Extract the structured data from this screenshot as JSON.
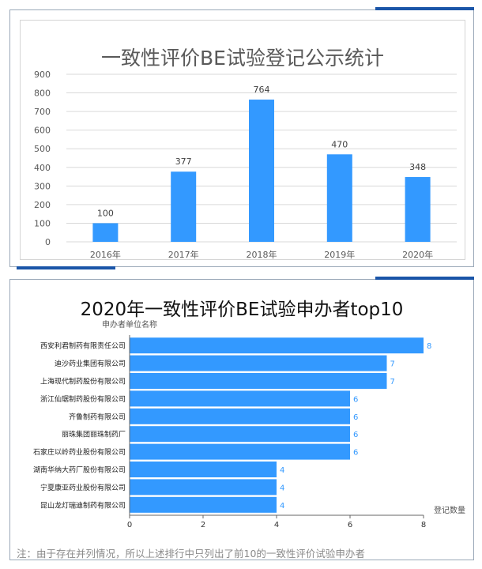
{
  "chart1": {
    "title": "一致性评价BE试验登记公示统计",
    "chart_data": {
      "type": "bar",
      "title": "一致性评价BE试验登记公示统计",
      "categories": [
        "2016年",
        "2017年",
        "2018年",
        "2019年",
        "2020年"
      ],
      "values": [
        100,
        377,
        764,
        470,
        348
      ],
      "ylim": [
        0,
        900
      ],
      "yticks": [
        0,
        100,
        200,
        300,
        400,
        500,
        600,
        700,
        800,
        900
      ],
      "grid": true,
      "bar_color": "#3399ff"
    }
  },
  "chart2": {
    "title": "2020年一致性评价BE试验申办者top10",
    "y_axis_title": "申办者单位名称",
    "x_axis_title": "登记数量",
    "note": "注：由于存在并列情况，所以上述排行中只列出了前10的一致性评价试验申办者",
    "chart_data": {
      "type": "bar",
      "orientation": "horizontal",
      "title": "2020年一致性评价BE试验申办者top10",
      "xlabel": "登记数量",
      "ylabel": "申办者单位名称",
      "categories": [
        "西安利君制药有限责任公司",
        "迪沙药业集团有限公司",
        "上海现代制药股份有限公司",
        "浙江仙琚制药股份有限公司",
        "齐鲁制药有限公司",
        "丽珠集团丽珠制药厂",
        "石家庄以岭药业股份有限公司",
        "湖南华纳大药厂股份有限公司",
        "宁夏康亚药业股份有限公司",
        "昆山龙灯瑞迪制药有限公司"
      ],
      "values": [
        8,
        7,
        7,
        6,
        6,
        6,
        6,
        4,
        4,
        4
      ],
      "xlim": [
        0,
        8
      ],
      "xticks": [
        0,
        2,
        4,
        6,
        8
      ],
      "bar_color": "#3399ff"
    }
  }
}
